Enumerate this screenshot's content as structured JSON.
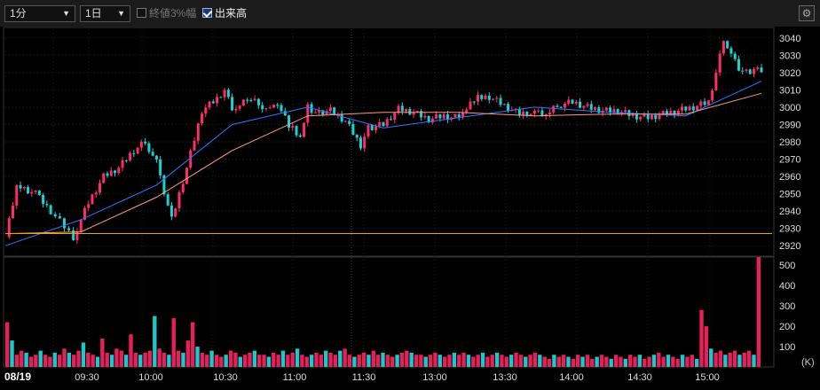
{
  "toolbar": {
    "interval_value": "1分",
    "period_value": "1日",
    "option_limit_label": "終値3%幅",
    "option_limit_checked": false,
    "option_hilo_label": "出来高",
    "option_hilo_checked": true,
    "settings_icon": "gear-icon"
  },
  "colors": {
    "up": "#ff2b6a",
    "down": "#19d3d3",
    "ma_short": "#2e7bff",
    "ma_long": "#ff9a88",
    "line": "#e9a800",
    "volume_up": "#e8205a",
    "volume_down": "#1fc8c8"
  },
  "chart_data": {
    "type": "candlestick",
    "date_label": "08/19",
    "x_tick_labels": [
      "09:30",
      "10:00",
      "10:30",
      "11:00",
      "11:30",
      "13:00",
      "13:30",
      "14:00",
      "14:30",
      "15:00"
    ],
    "price_axis": {
      "ticks": [
        2920,
        2930,
        2940,
        2950,
        2960,
        2970,
        2980,
        2990,
        3000,
        3010,
        3020,
        3030,
        3040
      ],
      "ylim": [
        2915,
        3045
      ]
    },
    "volume_axis": {
      "ticks": [
        100,
        200,
        300,
        400,
        500
      ],
      "unit": "(K)",
      "ylim": [
        0,
        540
      ]
    },
    "horizontal_line_value": 2927,
    "series": [
      {
        "name": "price",
        "kind": "close_path",
        "x": [
          0,
          3,
          8,
          12,
          18,
          22,
          26,
          30,
          34,
          37,
          40,
          44,
          48,
          52,
          56,
          58,
          60,
          62,
          64,
          67,
          70,
          72,
          75,
          78,
          80,
          82,
          86,
          90,
          94,
          96,
          100,
          104,
          108,
          112,
          116,
          118,
          121,
          124,
          128,
          132,
          136,
          138,
          140,
          143,
          146,
          150,
          154,
          158,
          162,
          166,
          170,
          174,
          178,
          182,
          186,
          188,
          190,
          192,
          194,
          196,
          198,
          200
        ],
        "y": [
          2925,
          2955,
          2950,
          2940,
          2925,
          2945,
          2960,
          2965,
          2975,
          2980,
          2968,
          2935,
          2965,
          2998,
          3005,
          3010,
          3000,
          3000,
          3005,
          3002,
          2998,
          3003,
          2990,
          2982,
          3000,
          2997,
          2998,
          2992,
          2978,
          2988,
          2990,
          2999,
          2997,
          2993,
          2995,
          2994,
          2997,
          3005,
          3006,
          3001,
          2996,
          2997,
          2997,
          2995,
          3001,
          3003,
          3000,
          2998,
          2998,
          2995,
          2994,
          2996,
          2998,
          3000,
          3003,
          3020,
          3040,
          3030,
          3022,
          3020,
          3022,
          3022
        ]
      },
      {
        "name": "ma_short",
        "kind": "line",
        "x": [
          0,
          20,
          40,
          60,
          80,
          100,
          120,
          140,
          160,
          180,
          200
        ],
        "y": [
          2920,
          2935,
          2955,
          2990,
          3000,
          2988,
          2994,
          3000,
          2997,
          2995,
          3015
        ]
      },
      {
        "name": "ma_long",
        "kind": "line",
        "x": [
          0,
          20,
          40,
          60,
          80,
          100,
          120,
          140,
          160,
          180,
          200
        ],
        "y": [
          2927,
          2928,
          2948,
          2975,
          2995,
          2997,
          2997,
          2995,
          2996,
          2996,
          3008
        ]
      }
    ],
    "volume_series": [
      {
        "name": "volume",
        "values": [
          220,
          130,
          60,
          80,
          70,
          50,
          60,
          80,
          60,
          50,
          70,
          60,
          90,
          70,
          60,
          80,
          120,
          70,
          60,
          50,
          140,
          70,
          60,
          90,
          80,
          60,
          160,
          70,
          60,
          70,
          80,
          250,
          90,
          70,
          60,
          240,
          80,
          70,
          130,
          220,
          100,
          70,
          60,
          80,
          60,
          50,
          60,
          80,
          70,
          50,
          60,
          70,
          80,
          60,
          60,
          50,
          70,
          60,
          80,
          60,
          70,
          90,
          60,
          50,
          60,
          70,
          60,
          80,
          70,
          60,
          80,
          90,
          60,
          50,
          60,
          70,
          60,
          80,
          60,
          70,
          60,
          50,
          60,
          70,
          80,
          70,
          60,
          60,
          50,
          60,
          70,
          60,
          50,
          60,
          70,
          60,
          70,
          60,
          50,
          60,
          70,
          50,
          60,
          70,
          60,
          50,
          60,
          70,
          60,
          50,
          60,
          70,
          60,
          50,
          40,
          60,
          50,
          60,
          50,
          40,
          60,
          50,
          60,
          40,
          50,
          60,
          50,
          40,
          60,
          50,
          40,
          60,
          50,
          60,
          40,
          50,
          60,
          70,
          50,
          60,
          50,
          40,
          60,
          50,
          60,
          40,
          280,
          200,
          90,
          70,
          80,
          60,
          70,
          80,
          60,
          70,
          80,
          60,
          540
        ]
      }
    ]
  }
}
